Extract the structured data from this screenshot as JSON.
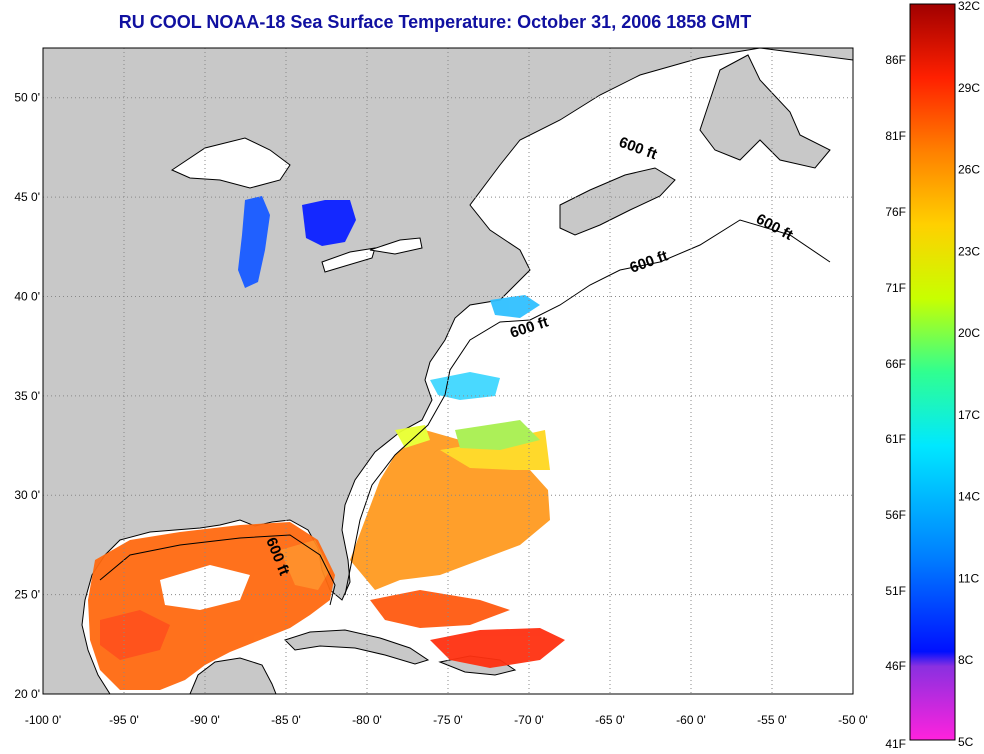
{
  "title": "RU COOL  NOAA-18  Sea Surface Temperature:  October 31, 2006 1858 GMT",
  "map": {
    "lon_range": [
      -100,
      -50
    ],
    "lat_range": [
      20,
      52.5
    ],
    "grid": true,
    "x_tick_labels": [
      "-100 0'",
      "-95 0'",
      "-90 0'",
      "-85 0'",
      "-80 0'",
      "-75 0'",
      "-70 0'",
      "-65 0'",
      "-60 0'",
      "-55 0'",
      "-50 0'"
    ],
    "y_tick_labels": [
      "20 0'",
      "25 0'",
      "30 0'",
      "35 0'",
      "40 0'",
      "45 0'",
      "50 0'"
    ],
    "land_color": "#c8c8c8",
    "contour_labels": [
      "600 ft",
      "600 ft",
      "600 ft",
      "600 ft",
      "600 ft"
    ]
  },
  "colorbar": {
    "celsius_labels": [
      "32C",
      "29C",
      "26C",
      "23C",
      "20C",
      "17C",
      "14C",
      "11C",
      "8C",
      "5C"
    ],
    "fahrenheit_labels": [
      "86F",
      "81F",
      "76F",
      "71F",
      "66F",
      "61F",
      "56F",
      "51F",
      "46F",
      "41F"
    ],
    "colors": [
      "#ff22dd",
      "#8a30e0",
      "#0010ff",
      "#0080ff",
      "#00e8ff",
      "#30ff90",
      "#c8ff00",
      "#ffd000",
      "#ff8000",
      "#ff2000",
      "#a00000"
    ]
  }
}
